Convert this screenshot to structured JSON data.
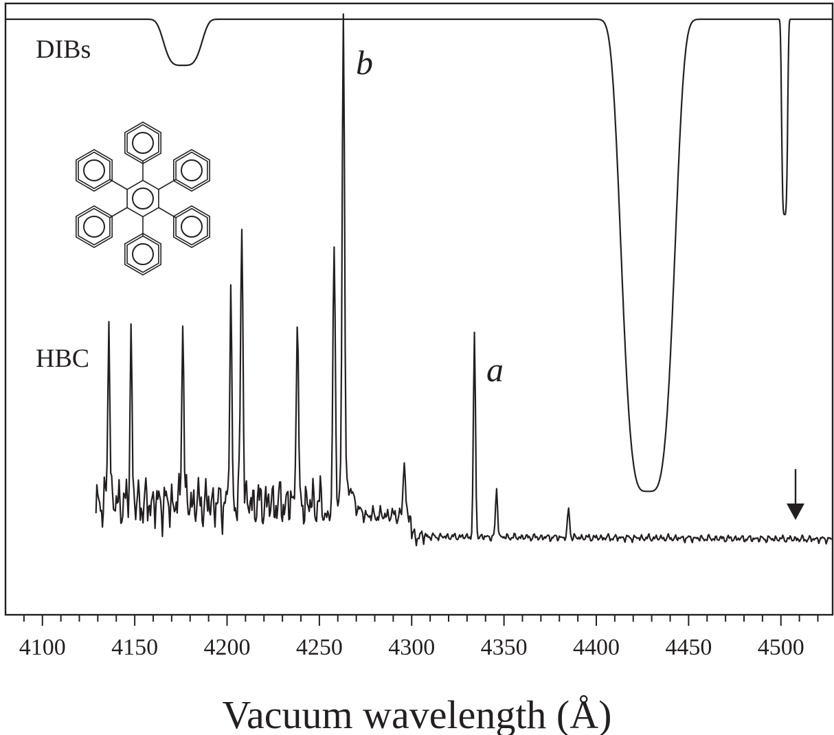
{
  "chart_data": {
    "type": "line",
    "xlabel": "Vacuum wavelength (Å)",
    "ylabel": "",
    "xlim": [
      4080,
      4528
    ],
    "x_ticks": [
      "4100",
      "4150",
      "4200",
      "4250",
      "4300",
      "4350",
      "4400",
      "4450",
      "4500"
    ],
    "grid": false,
    "series": [
      {
        "name": "DIBs",
        "baseline": 1.0,
        "features": [
          {
            "center": 4176,
            "depth": 0.085,
            "width": 10
          },
          {
            "center": 4428,
            "depth": 0.87,
            "width": 14
          },
          {
            "center": 4502,
            "depth": 0.36,
            "width": 1.6
          }
        ]
      },
      {
        "name": "HBC",
        "x_start": 4129,
        "x_end": 4528,
        "peaks": [
          {
            "x": 4136,
            "y": 0.39
          },
          {
            "x": 4148,
            "y": 0.35
          },
          {
            "x": 4176,
            "y": 0.4
          },
          {
            "x": 4202,
            "y": 0.44
          },
          {
            "x": 4208,
            "y": 0.6
          },
          {
            "x": 4238,
            "y": 0.41
          },
          {
            "x": 4258,
            "y": 0.56
          },
          {
            "x": 4263,
            "y": 1.0
          },
          {
            "x": 4296,
            "y": 0.12
          },
          {
            "x": 4334,
            "y": 0.42
          },
          {
            "x": 4346,
            "y": 0.1
          },
          {
            "x": 4385,
            "y": 0.06
          }
        ]
      }
    ],
    "annotations": [
      {
        "text": "b",
        "x": 4263
      },
      {
        "text": "a",
        "x": 4334
      },
      {
        "text": "arrow",
        "x": 4509
      }
    ]
  }
}
